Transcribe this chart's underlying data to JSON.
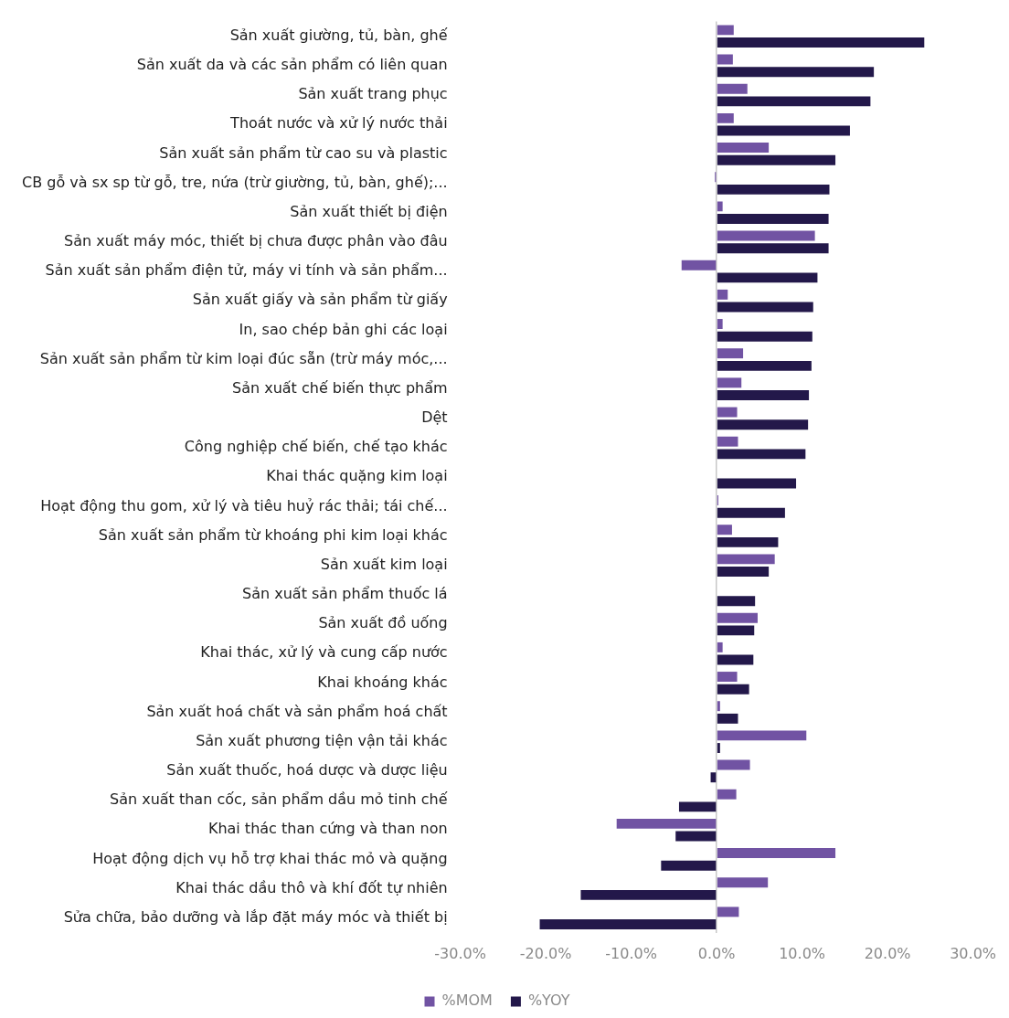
{
  "chart_data": {
    "type": "bar",
    "orientation": "horizontal",
    "categories": [
      "Sản xuất giường, tủ, bàn, ghế",
      "Sản xuất da và các sản phẩm có liên quan",
      "Sản xuất trang phục",
      "Thoát nước và xử lý nước thải",
      "Sản xuất sản phẩm từ cao su và plastic",
      "CB gỗ và sx sp từ gỗ, tre, nứa (trừ giường, tủ, bàn, ghế);...",
      "Sản xuất thiết bị điện",
      "Sản xuất máy móc, thiết bị chưa được phân vào đâu",
      "Sản xuất sản phẩm điện tử, máy vi tính và sản phẩm...",
      "Sản xuất giấy và sản phẩm từ giấy",
      "In, sao chép bản ghi các loại",
      "Sản xuất sản phẩm từ kim loại đúc sẵn (trừ máy móc,...",
      "Sản xuất chế biến thực phẩm",
      "Dệt",
      "Công nghiệp chế biến, chế tạo khác",
      "Khai thác quặng kim loại",
      "Hoạt động thu gom, xử lý và tiêu huỷ rác thải; tái chế...",
      "Sản xuất sản phẩm từ khoáng phi kim loại khác",
      "Sản xuất kim loại",
      "Sản xuất sản phẩm thuốc lá",
      "Sản xuất đồ uống",
      "Khai thác, xử lý và cung cấp nước",
      "Khai khoáng khác",
      "Sản xuất hoá chất và sản phẩm hoá chất",
      "Sản xuất phương tiện vận tải khác",
      "Sản xuất thuốc, hoá dược và dược liệu",
      "Sản xuất than cốc, sản phẩm dầu mỏ tinh chế",
      "Khai thác than cứng và than non",
      "Hoạt động dịch vụ hỗ trợ khai thác mỏ và quặng",
      "Khai thác dầu thô và khí đốt tự nhiên",
      "Sửa chữa, bảo dưỡng và lắp đặt máy móc và thiết bị"
    ],
    "series": [
      {
        "name": "%MOM",
        "color": "#7153a3",
        "values": [
          2.0,
          1.9,
          3.6,
          2.0,
          6.1,
          -0.2,
          0.7,
          11.5,
          -4.1,
          1.3,
          0.7,
          3.1,
          2.9,
          2.4,
          2.5,
          null,
          0.2,
          1.8,
          6.8,
          0,
          4.8,
          0.7,
          2.4,
          0.4,
          10.5,
          3.9,
          2.3,
          -11.7,
          13.9,
          6.0,
          2.6
        ]
      },
      {
        "name": "%YOY",
        "color": "#23184a",
        "values": [
          24.3,
          18.4,
          18.0,
          15.6,
          13.9,
          13.2,
          13.1,
          13.1,
          11.8,
          11.3,
          11.2,
          11.1,
          10.8,
          10.7,
          10.4,
          9.3,
          8.0,
          7.2,
          6.1,
          4.5,
          4.4,
          4.3,
          3.8,
          2.5,
          0.4,
          -0.7,
          -4.4,
          -4.8,
          -6.5,
          -15.9,
          -20.7
        ]
      }
    ],
    "xlim": [
      -30,
      30
    ],
    "xticks": [
      {
        "value": -30,
        "label": "-30.0%"
      },
      {
        "value": -20,
        "label": "-20.0%"
      },
      {
        "value": -10,
        "label": "-10.0%"
      },
      {
        "value": 0,
        "label": "0.0%"
      },
      {
        "value": 10,
        "label": "10.0%"
      },
      {
        "value": 20,
        "label": "20.0%"
      },
      {
        "value": 30,
        "label": "30.0%"
      }
    ],
    "legend": "bottom"
  }
}
